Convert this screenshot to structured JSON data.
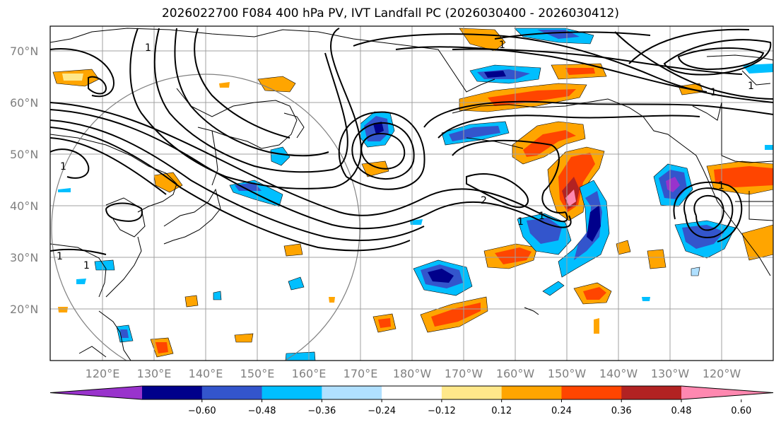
{
  "title": "2026022700 F084 400 hPa PV, IVT Landfall PC (2026030400 - 2026030412)",
  "lat_labels": [
    "70°N",
    "60°N",
    "50°N",
    "40°N",
    "30°N",
    "20°N"
  ],
  "lon_labels": [
    "120°E",
    "130°E",
    "140°E",
    "150°E",
    "160°E",
    "170°E",
    "180°W",
    "170°W",
    "160°W",
    "150°W",
    "140°W",
    "130°W",
    "120°W"
  ],
  "colorbar": {
    "ticks": [
      "−0.60",
      "−0.48",
      "−0.36",
      "−0.24",
      "−0.12",
      "0.12",
      "0.24",
      "0.36",
      "0.48",
      "0.60"
    ],
    "colors": [
      "#9933cc",
      "#00008b",
      "#3355cc",
      "#00bfff",
      "#b0e0ff",
      "#ffffff",
      "#ffe88a",
      "#ffa500",
      "#ff4500",
      "#b22222",
      "#ff88b0"
    ]
  },
  "contour_labels": [
    "1",
    "1",
    "1",
    "1",
    "2",
    "1",
    "1",
    "1",
    "1",
    "1",
    "1"
  ],
  "map_colors": {
    "coast": "#000000",
    "grid": "#a0a0a0",
    "circle": "#808080",
    "contour": "#000000"
  }
}
